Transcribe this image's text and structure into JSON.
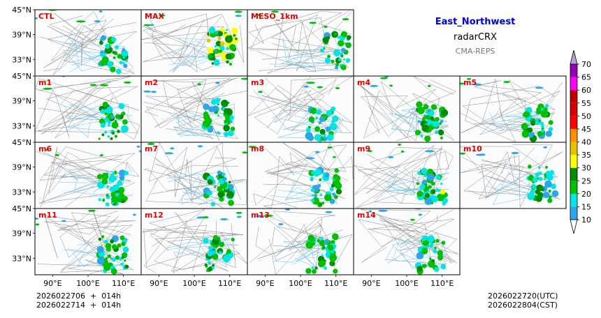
{
  "chart_data": {
    "type": "heatmap",
    "title": "East_Northwest",
    "subtitle": "radarCRX",
    "model": "CMA-REPS",
    "panels": [
      {
        "label": "CTL",
        "intensity": 0.55,
        "center": [
          107,
          34
        ]
      },
      {
        "label": "MAX",
        "intensity": 1.0,
        "center": [
          108,
          36
        ]
      },
      {
        "label": "MESO_1km",
        "intensity": 0.45,
        "center": [
          110,
          35
        ]
      },
      {
        "label": "m1",
        "intensity": 0.55,
        "center": [
          107,
          34
        ]
      },
      {
        "label": "m2",
        "intensity": 0.55,
        "center": [
          107,
          35
        ]
      },
      {
        "label": "m3",
        "intensity": 0.4,
        "center": [
          106,
          34
        ]
      },
      {
        "label": "m4",
        "intensity": 0.55,
        "center": [
          107,
          34
        ]
      },
      {
        "label": "m5",
        "intensity": 0.5,
        "center": [
          107,
          34
        ]
      },
      {
        "label": "m6",
        "intensity": 0.55,
        "center": [
          107,
          34
        ]
      },
      {
        "label": "m7",
        "intensity": 0.5,
        "center": [
          107,
          34
        ]
      },
      {
        "label": "m8",
        "intensity": 0.55,
        "center": [
          107,
          34
        ]
      },
      {
        "label": "m9",
        "intensity": 0.6,
        "center": [
          107,
          34
        ]
      },
      {
        "label": "m10",
        "intensity": 0.55,
        "center": [
          108,
          35
        ]
      },
      {
        "label": "m11",
        "intensity": 0.6,
        "center": [
          107,
          34
        ]
      },
      {
        "label": "m12",
        "intensity": 0.55,
        "center": [
          107,
          34
        ]
      },
      {
        "label": "m13",
        "intensity": 0.55,
        "center": [
          106,
          34
        ]
      },
      {
        "label": "m14",
        "intensity": 0.45,
        "center": [
          107,
          34
        ]
      }
    ],
    "lat_ticks": [
      "45°N",
      "39°N",
      "33°N"
    ],
    "lon_ticks": [
      "90°E",
      "100°E",
      "110°E"
    ],
    "lat_values": [
      45,
      39,
      33
    ],
    "lon_values": [
      90,
      100,
      110
    ],
    "colorbar": {
      "levels": [
        10,
        15,
        20,
        25,
        30,
        35,
        40,
        45,
        50,
        55,
        60,
        65,
        70
      ],
      "labels": [
        "10",
        "15",
        "20",
        "25",
        "30",
        "35",
        "40",
        "45",
        "50",
        "55",
        "60",
        "65",
        "70"
      ],
      "colors": [
        "#2ba6e8",
        "#00e4e4",
        "#00c000",
        "#008c00",
        "#ffff00",
        "#e7c000",
        "#ff9000",
        "#ff0000",
        "#d60000",
        "#c00000",
        "#ff00f0",
        "#9600b4",
        "#b070d0"
      ],
      "extend_low_color": "#ffffff",
      "extend_high_color": "#b8a0d8"
    },
    "footer": {
      "left": "2026022706  +  014h\n2026022714  +  014h",
      "right": "2026022720(UTC)\n2026022804(CST)"
    }
  }
}
